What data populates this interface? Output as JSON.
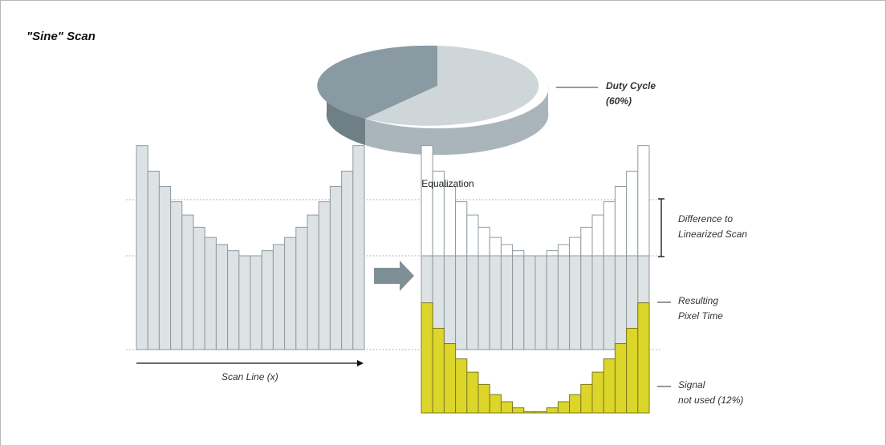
{
  "title": "\"Sine\" Scan",
  "equalization_title": "Equalization",
  "labels": {
    "duty_cycle_line1": "Duty Cycle",
    "duty_cycle_line2": "(60%)",
    "difference_line1": "Difference to",
    "difference_line2": "Linearized Scan",
    "resulting_line1": "Resulting",
    "resulting_line2": "Pixel Time",
    "signal_line1": "Signal",
    "signal_line2": "not used (12%)",
    "scan_line": "Scan Line (x)"
  },
  "colors": {
    "bar_fill": "#dde2e4",
    "bar_stroke": "#8e9aa0",
    "signal_fill": "#dcd52a",
    "signal_stroke": "#7e7a1e",
    "pie_light_top": "#cfd6da",
    "pie_dark_top": "#8a9aa2",
    "pie_light_side": "#a9b5ba",
    "pie_dark_side": "#6f7f86",
    "arrow": "#7f8f96"
  },
  "pie": {
    "duty_cycle_percent": 60
  },
  "bars": {
    "relative_pixel_time": [
      2.0,
      1.75,
      1.6,
      1.45,
      1.32,
      1.2,
      1.1,
      1.03,
      0.97,
      0.92,
      0.92,
      0.97,
      1.03,
      1.1,
      1.2,
      1.32,
      1.45,
      1.6,
      1.75,
      2.0
    ],
    "linearized_level": 0.92,
    "signal_not_used_percent": 12
  }
}
